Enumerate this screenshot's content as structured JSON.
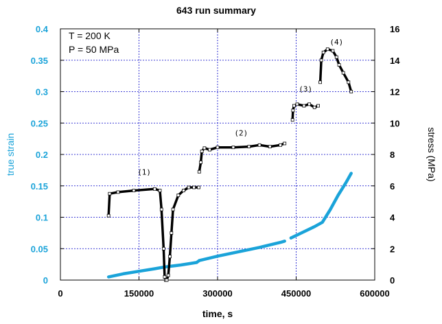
{
  "chart_data": {
    "type": "line",
    "title": "643 run summary",
    "xlabel": "time, s",
    "ylabel_left": "true strain",
    "ylabel_right": "stress (MPa)",
    "xlim": [
      0,
      600000
    ],
    "ylim_left": [
      0,
      0.4
    ],
    "ylim_right": [
      0,
      16
    ],
    "x_ticks": [
      "0",
      "150000",
      "300000",
      "450000",
      "600000"
    ],
    "x_tick_values": [
      0,
      150000,
      300000,
      450000,
      600000
    ],
    "y_left_ticks": [
      "0",
      "0.05",
      "0.1",
      "0.15",
      "0.2",
      "0.25",
      "0.3",
      "0.35",
      "0.4"
    ],
    "y_left_tick_values": [
      0,
      0.05,
      0.1,
      0.15,
      0.2,
      0.25,
      0.3,
      0.35,
      0.4
    ],
    "y_right_ticks": [
      "0",
      "2",
      "4",
      "6",
      "8",
      "10",
      "12",
      "14",
      "16"
    ],
    "y_right_tick_values": [
      0,
      2,
      4,
      6,
      8,
      10,
      12,
      14,
      16
    ],
    "grid": true,
    "annotations": [
      "T = 200 K",
      "P = 50 MPa"
    ],
    "stage_labels": [
      {
        "text": "(1)",
        "x": 160000,
        "y_stress": 6.7
      },
      {
        "text": "(2)",
        "x": 345000,
        "y_stress": 9.2
      },
      {
        "text": "(3)",
        "x": 468000,
        "y_stress": 12.0
      },
      {
        "text": "(4)",
        "x": 527000,
        "y_stress": 15.0
      }
    ],
    "series": [
      {
        "axis": "left",
        "color": "#1aa3d9",
        "segments": [
          {
            "x": [
              92000,
              120000,
              150000,
              180000,
              200000,
              230000,
              260000,
              265000,
              300000,
              340000,
              380000,
              420000,
              428000
            ],
            "y": [
              0.005,
              0.01,
              0.014,
              0.018,
              0.021,
              0.024,
              0.028,
              0.031,
              0.038,
              0.045,
              0.052,
              0.06,
              0.062
            ]
          },
          {
            "x": [
              440000,
              460000,
              485000,
              500000,
              515000,
              530000,
              545000,
              555000
            ],
            "y": [
              0.067,
              0.075,
              0.085,
              0.092,
              0.112,
              0.135,
              0.155,
              0.17
            ]
          }
        ]
      },
      {
        "axis": "right",
        "color": "#000000",
        "segments": [
          {
            "x": [
              92000,
              94000,
              110000,
              140000,
              180000,
              190000,
              193000,
              197000,
              199000,
              201000,
              203000,
              206000,
              209000,
              212000,
              215000,
              225000,
              235000,
              245000,
              255000,
              264000
            ],
            "y": [
              4.1,
              5.5,
              5.6,
              5.7,
              5.8,
              5.7,
              4.5,
              2.0,
              0.2,
              0.0,
              0.0,
              0.3,
              1.5,
              3.0,
              4.5,
              5.4,
              5.7,
              5.9,
              5.9,
              5.9
            ]
          },
          {
            "x": [
              265000,
              268000,
              270000,
              275000,
              285000,
              300000,
              330000,
              360000,
              380000,
              400000,
              420000,
              428000
            ],
            "y": [
              6.9,
              7.5,
              8.2,
              8.4,
              8.3,
              8.45,
              8.45,
              8.5,
              8.6,
              8.5,
              8.6,
              8.7
            ]
          },
          {
            "x": [
              443000,
              444000,
              446000,
              452000,
              465000,
              475000,
              485000,
              492000
            ],
            "y": [
              10.2,
              10.8,
              11.1,
              11.2,
              11.1,
              11.2,
              11.0,
              11.1
            ]
          },
          {
            "x": [
              496000,
              498000,
              502000,
              510000,
              520000,
              527000,
              532000,
              540000,
              550000,
              555000
            ],
            "y": [
              12.6,
              14.0,
              14.5,
              14.7,
              14.6,
              14.2,
              13.7,
              13.2,
              12.6,
              12.0
            ]
          }
        ]
      }
    ]
  }
}
